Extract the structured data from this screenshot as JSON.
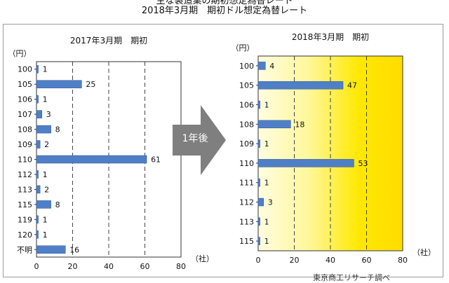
{
  "header": {
    "title_line1": "主な製造業の期初想定為替レート",
    "title_line2": "2018年3月期　期初ドル想定為替レート"
  },
  "arrow": {
    "label": "1年後",
    "color": "#7f7f7f"
  },
  "footer": {
    "note": "東京商工リサーチ調べ"
  },
  "chart_data": [
    {
      "type": "bar",
      "orientation": "horizontal",
      "title": "2017年3月期　期初",
      "ylabel": "（円）",
      "xlabel": "（社）",
      "categories": [
        "100",
        "105",
        "106",
        "107",
        "108",
        "109",
        "110",
        "112",
        "113",
        "115",
        "119",
        "120",
        "不明"
      ],
      "values": [
        1,
        25,
        1,
        3,
        8,
        2,
        61,
        1,
        2,
        8,
        1,
        1,
        16
      ],
      "xlim": [
        0,
        80
      ],
      "xticks": [
        0,
        20,
        40,
        60,
        80
      ],
      "grid": "dashed vertical",
      "bar_color": "#4f7fc6"
    },
    {
      "type": "bar",
      "orientation": "horizontal",
      "title": "2018年3月期　期初",
      "ylabel": "（円）",
      "xlabel": "（社）",
      "categories": [
        "100",
        "105",
        "106",
        "108",
        "109",
        "110",
        "111",
        "112",
        "113",
        "115"
      ],
      "values": [
        4,
        47,
        1,
        18,
        1,
        53,
        1,
        3,
        1,
        1
      ],
      "xlim": [
        0,
        80
      ],
      "xticks": [
        0,
        20,
        40,
        60,
        80
      ],
      "grid": "dashed vertical",
      "background": "yellow gradient",
      "bar_color": "#4f7fc6"
    }
  ]
}
